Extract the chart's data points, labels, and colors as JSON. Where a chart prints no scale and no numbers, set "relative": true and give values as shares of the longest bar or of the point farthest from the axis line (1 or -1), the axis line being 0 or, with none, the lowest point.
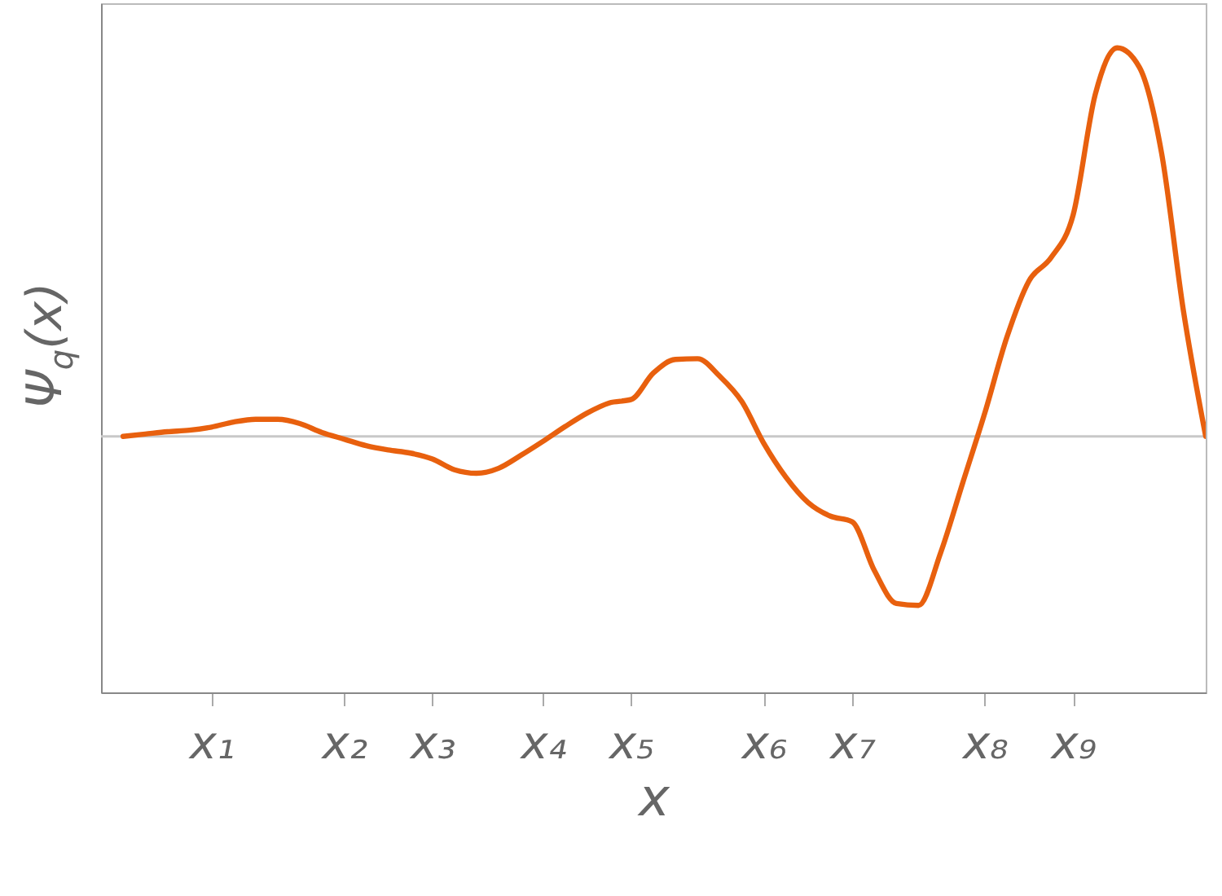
{
  "chart_data": {
    "type": "line",
    "xlabel": "x",
    "ylabel": "Ψ$_{q}$(x)",
    "relative": true,
    "categories": [
      null,
      null,
      null,
      null,
      null,
      "x₁",
      null,
      null,
      null,
      null,
      null,
      "x₂",
      null,
      null,
      null,
      "x₃",
      null,
      null,
      null,
      null,
      "x₄",
      null,
      null,
      null,
      "x₅",
      null,
      null,
      null,
      null,
      null,
      "x₆",
      null,
      null,
      null,
      "x₇",
      null,
      null,
      null,
      null,
      null,
      "x₈",
      null,
      null,
      null,
      "x₉",
      null,
      null,
      null,
      null,
      null,
      null
    ],
    "ref_lines": [
      {
        "axis": "y",
        "value": 0,
        "color": "#c8c8c8"
      }
    ],
    "marker": "none",
    "line_style": "solid",
    "series": [
      {
        "color": "#e8600e",
        "values": [
          null,
          0,
          0.006,
          0.012,
          0.016,
          0.024,
          0.037,
          0.044,
          0.044,
          0.033,
          0.01,
          -0.007,
          -0.024,
          -0.035,
          -0.043,
          -0.058,
          -0.086,
          -0.095,
          -0.082,
          -0.049,
          -0.013,
          0.025,
          0.06,
          0.086,
          0.095,
          0.163,
          0.198,
          0.2,
          0.155,
          0.09,
          -0.018,
          -0.105,
          -0.17,
          -0.205,
          -0.22,
          -0.345,
          -0.43,
          -0.435,
          -0.3,
          -0.12,
          0.06,
          0.255,
          0.4,
          0.46,
          0.57,
          0.88,
          1,
          0.95,
          0.73,
          0.32,
          0
        ]
      }
    ]
  }
}
